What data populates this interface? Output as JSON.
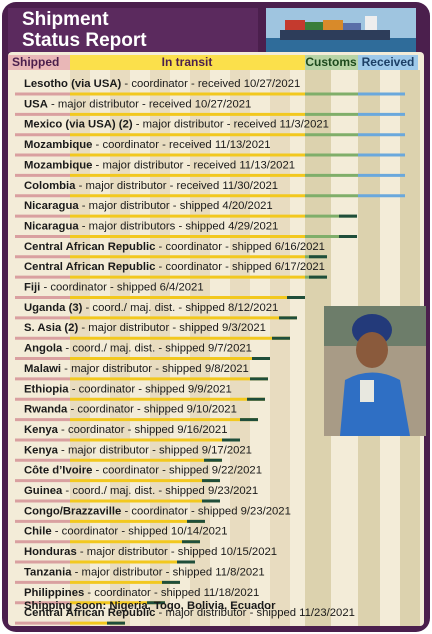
{
  "header": {
    "title_line1": "Shipment",
    "title_line2": "Status Report"
  },
  "stages": [
    "Shipped",
    "In transit",
    "Customs",
    "Received"
  ],
  "rows": [
    {
      "country": "Lesotho (via USA)",
      "detail": " - coordinator - received 10/27/2021"
    },
    {
      "country": "USA",
      "detail": " - major distributor - received 10/27/2021"
    },
    {
      "country": "Mexico (via USA) (2)",
      "detail": " - major distributor - received 11/3/2021"
    },
    {
      "country": "Mozambique",
      "detail": " - coordinator - received 11/13/2021"
    },
    {
      "country": "Mozambique",
      "detail": " - major distributor - received 11/13/2021"
    },
    {
      "country": "Colombia",
      "detail": " - major distributor - received 11/30/2021"
    },
    {
      "country": "Nicaragua",
      "detail": " - major distributor - shipped 4/20/2021"
    },
    {
      "country": "Nicaragua",
      "detail": " - major distributors - shipped 4/29/2021"
    },
    {
      "country": "Central African Republic",
      "detail": " - coordinator - shipped 6/16/2021"
    },
    {
      "country": "Central African Republic",
      "detail": " - coordinator - shipped 6/17/2021"
    },
    {
      "country": "Fiji",
      "detail": " - coordinator - shipped 6/4/2021"
    },
    {
      "country": "Uganda (3)",
      "detail": " - coord./ maj. dist. - shipped 8/12/2021"
    },
    {
      "country": "S. Asia (2)",
      "detail": " - major distributor - shipped 9/3/2021"
    },
    {
      "country": "Angola",
      "detail": " - coord./ maj. dist. - shipped 9/7/2021"
    },
    {
      "country": "Malawi",
      "detail": " - major distributor - shipped 9/8/2021"
    },
    {
      "country": "Ethiopia",
      "detail": " - coordinator - shipped 9/9/2021"
    },
    {
      "country": "Rwanda",
      "detail": " - coordinator - shipped 9/10/2021"
    },
    {
      "country": "Kenya",
      "detail": " - coordinator - shipped 9/16/2021"
    },
    {
      "country": "Kenya",
      "detail": " - major distributor - shipped 9/17/2021"
    },
    {
      "country": "Côte d’Ivoire",
      "detail": " - coordinator - shipped 9/22/2021"
    },
    {
      "country": "Guinea",
      "detail": " - coord./ maj. dist. - shipped 9/23/2021"
    },
    {
      "country": "Congo/Brazzaville",
      "detail": " - coordinator - shipped 9/23/2021"
    },
    {
      "country": "Chile",
      "detail": " - coordinator - shipped 10/14/2021"
    },
    {
      "country": "Honduras",
      "detail": " - major distributor - shipped 10/15/2021"
    },
    {
      "country": "Tanzania",
      "detail": " - major distributor - shipped 11/8/2021"
    },
    {
      "country": "Philippines",
      "detail": " - coordinator - shipped 11/18/2021"
    },
    {
      "country": "Central African Republic",
      "detail": " - major distributor - shipped 11/23/2021"
    }
  ],
  "footer": "Shipping soon: Nigeria, Togo, Bolivia, Ecuador"
}
